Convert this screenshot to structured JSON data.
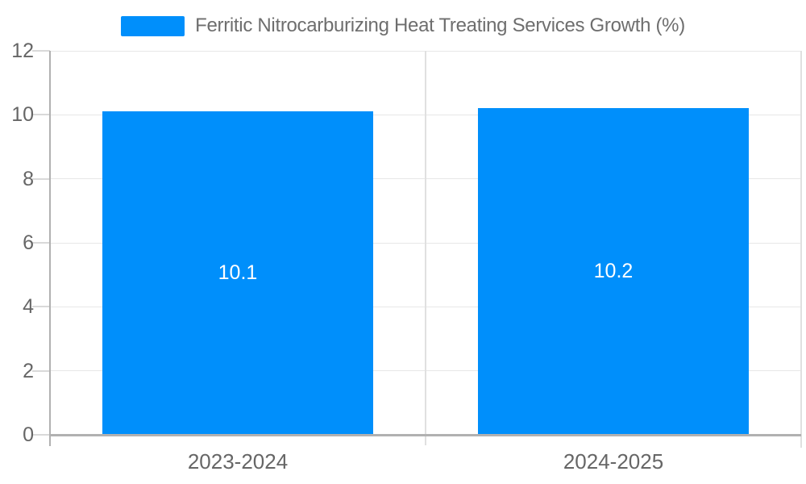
{
  "colors": {
    "bar": "#008FFB",
    "title_text": "#6e6e6e",
    "axis_label": "#666666",
    "gridline": "#e7e7e7",
    "divider": "#e0e0e0",
    "tick": "#d9d9d9",
    "axis_line": "#b1b1b1",
    "data_label": "#ffffff"
  },
  "chart_data": {
    "type": "bar",
    "title": "Ferritic Nitrocarburizing Heat Treating Services Growth (%)",
    "legend": [
      "Ferritic Nitrocarburizing Heat Treating Services Growth (%)"
    ],
    "legend_position": "top",
    "categories": [
      "2023-2024",
      "2024-2025"
    ],
    "values": [
      10.1,
      10.2
    ],
    "data_labels": [
      "10.1",
      "10.2"
    ],
    "xlabel": "",
    "ylabel": "",
    "ylim": [
      0,
      12
    ],
    "yticks": [
      0,
      2,
      4,
      6,
      8,
      10,
      12
    ],
    "grid": true
  }
}
